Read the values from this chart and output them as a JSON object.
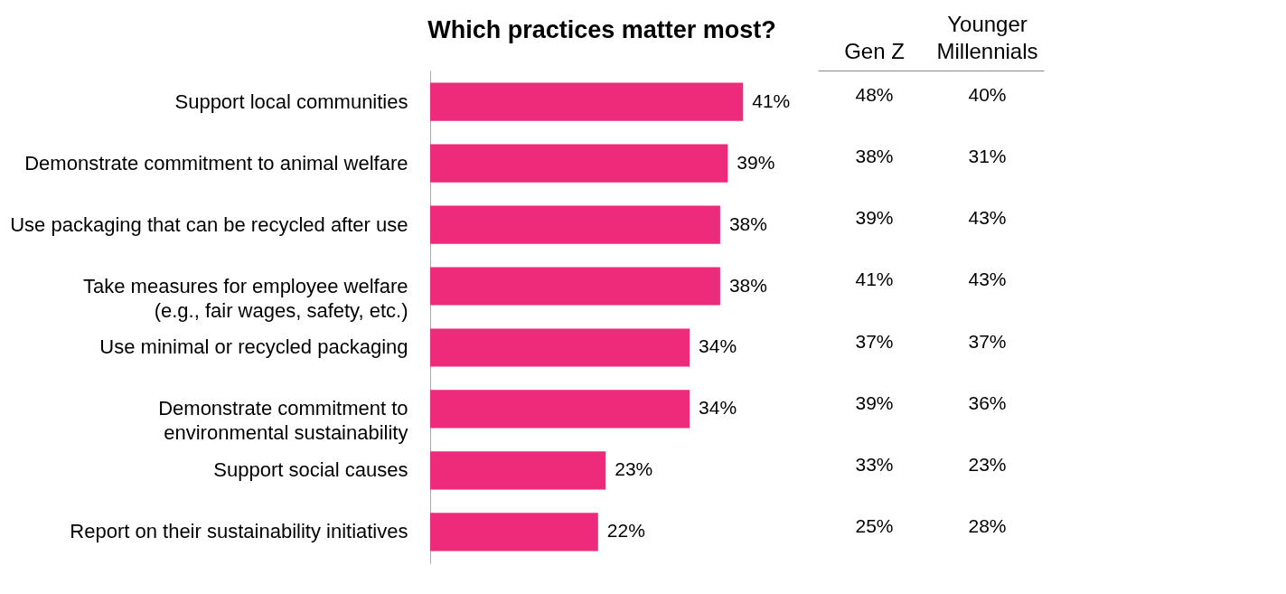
{
  "chart_data": [
    {
      "type": "bar",
      "orientation": "horizontal",
      "title": "Which practices matter most?",
      "categories": [
        "Support local communities",
        "Demonstrate commitment to animal welfare",
        "Use packaging that can be recycled after use",
        "Take measures for employee welfare\n(e.g., fair wages, safety, etc.)",
        "Use minimal or recycled packaging",
        "Demonstrate commitment to\nenvironmental sustainability",
        "Support social causes",
        "Report on their sustainability initiatives"
      ],
      "values": [
        41,
        39,
        38,
        38,
        34,
        34,
        23,
        22
      ],
      "value_labels": [
        "41%",
        "39%",
        "38%",
        "38%",
        "34%",
        "34%",
        "23%",
        "22%"
      ],
      "color": "#ee2a7b",
      "tick_labels": "y"
    },
    {
      "type": "heatmap",
      "categories": [
        "Gen Z",
        "Younger\nMillennials"
      ],
      "y_categories": [
        null,
        null,
        null,
        null,
        null,
        null,
        null,
        null
      ],
      "cells": [
        [
          48,
          40
        ],
        [
          38,
          31
        ],
        [
          39,
          43
        ],
        [
          41,
          43
        ],
        [
          37,
          37
        ],
        [
          39,
          36
        ],
        [
          33,
          23
        ],
        [
          25,
          28
        ]
      ],
      "cell_labels": [
        [
          "48%",
          "40%"
        ],
        [
          "38%",
          "31%"
        ],
        [
          "39%",
          "43%"
        ],
        [
          "41%",
          "43%"
        ],
        [
          "37%",
          "37%"
        ],
        [
          "39%",
          "36%"
        ],
        [
          "33%",
          "23%"
        ],
        [
          "25%",
          "28%"
        ]
      ],
      "tick_labels": "x"
    }
  ]
}
